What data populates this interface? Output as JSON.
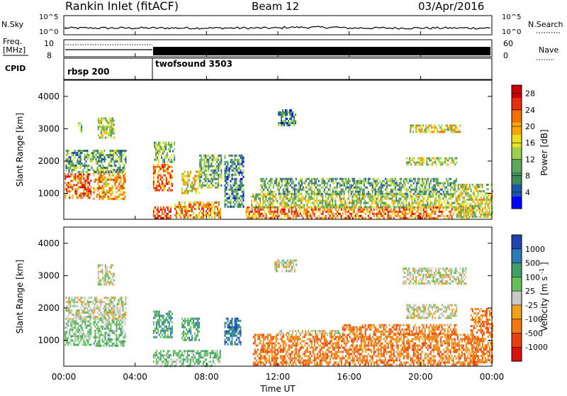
{
  "header": {
    "station": "Rankin Inlet (fitACF)",
    "beam": "Beam 12",
    "date": "03/Apr/2016"
  },
  "top_panels": {
    "nsky_label": "N.Sky",
    "nsky_ticks": [
      "10^5",
      "10^0"
    ],
    "nsearch_label": "N.Search",
    "nsearch_ticks": [
      "10^5",
      "10^0"
    ],
    "freq_label_1": "Freq.",
    "freq_label_2": "[MHz]",
    "freq_ticks": [
      "10",
      "8"
    ],
    "nave_label": "Nave",
    "nave_ticks": [
      "60",
      "0"
    ],
    "cpid_label": "CPID",
    "cpid_segments": [
      {
        "name": "rbsp 200",
        "start_hour": 0,
        "end_hour": 5
      },
      {
        "name": "twofsound 3503",
        "start_hour": 5,
        "end_hour": 24
      }
    ]
  },
  "x_axis": {
    "title": "Time UT",
    "ticks": [
      "00:00",
      "04:00",
      "08:00",
      "12:00",
      "16:00",
      "20:00",
      "00:00"
    ],
    "tick_hours": [
      0,
      4,
      8,
      12,
      16,
      20,
      24
    ]
  },
  "colorbars": {
    "power": {
      "title": "Power [dB]",
      "labels": [
        "28",
        "24",
        "20",
        "16",
        "12",
        "8",
        "4"
      ],
      "label_values": [
        28,
        24,
        20,
        16,
        12,
        8,
        4
      ],
      "range": [
        0,
        30
      ],
      "colors": [
        "#0000ff",
        "#1d58a8",
        "#3f8a56",
        "#5fa65f",
        "#9cd04e",
        "#e8e020",
        "#f7a800",
        "#f07000",
        "#e83010",
        "#cc0000"
      ]
    },
    "velocity": {
      "title_main": "Velocity [m s",
      "title_sup": "-1",
      "title_end": "]",
      "labels": [
        "1000",
        "500",
        "100",
        "25",
        "-25",
        "-100",
        "-500",
        "-1000"
      ],
      "colors": [
        "#2244aa",
        "#2f7ab6",
        "#3f9f66",
        "#66c05a",
        "#c8c8c8",
        "#f2a020",
        "#f07810",
        "#e84010",
        "#dd1010"
      ]
    }
  },
  "chart_data": [
    {
      "type": "heatmap",
      "title": "Power",
      "ylabel": "Slant Range [km]",
      "xlabel": "",
      "ylim": [
        200,
        4500
      ],
      "yticks": [
        1000,
        2000,
        3000,
        4000
      ],
      "x_range_hours": [
        0,
        24
      ],
      "echo_regions": [
        {
          "t0": 0.05,
          "t1": 1.55,
          "r0": 880,
          "r1": 1620,
          "level": 24
        },
        {
          "t0": 1.65,
          "t1": 3.45,
          "r0": 820,
          "r1": 1720,
          "level": 20
        },
        {
          "t0": 0.1,
          "t1": 3.5,
          "r0": 1630,
          "r1": 2350,
          "level": 10
        },
        {
          "t0": 1.9,
          "t1": 2.8,
          "r0": 2750,
          "r1": 3350,
          "level": 13
        },
        {
          "t0": 0.8,
          "t1": 1.0,
          "r0": 2900,
          "r1": 3200,
          "level": 9
        },
        {
          "t0": 5.0,
          "t1": 6.1,
          "r0": 1100,
          "r1": 1920,
          "level": 22
        },
        {
          "t0": 5.05,
          "t1": 6.2,
          "r0": 2000,
          "r1": 2600,
          "level": 11
        },
        {
          "t0": 6.6,
          "t1": 7.6,
          "r0": 1000,
          "r1": 1700,
          "level": 16
        },
        {
          "t0": 7.6,
          "t1": 8.8,
          "r0": 1200,
          "r1": 2200,
          "level": 11
        },
        {
          "t0": 5.0,
          "t1": 6.0,
          "r0": 230,
          "r1": 600,
          "level": 26
        },
        {
          "t0": 6.2,
          "t1": 8.8,
          "r0": 250,
          "r1": 750,
          "level": 20
        },
        {
          "t0": 9.0,
          "t1": 10.1,
          "r0": 600,
          "r1": 2200,
          "level": 8
        },
        {
          "t0": 10.2,
          "t1": 22.8,
          "r0": 230,
          "r1": 600,
          "level": 22
        },
        {
          "t0": 10.5,
          "t1": 22.0,
          "r0": 600,
          "r1": 1000,
          "level": 14
        },
        {
          "t0": 11.0,
          "t1": 22.0,
          "r0": 1000,
          "r1": 1480,
          "level": 10
        },
        {
          "t0": 19.4,
          "t1": 22.2,
          "r0": 2900,
          "r1": 3130,
          "level": 17
        },
        {
          "t0": 19.2,
          "t1": 22.0,
          "r0": 1880,
          "r1": 2120,
          "level": 14
        },
        {
          "t0": 22.0,
          "t1": 24.0,
          "r0": 250,
          "r1": 1300,
          "level": 15
        },
        {
          "t0": 12.0,
          "t1": 13.0,
          "r0": 3100,
          "r1": 3600,
          "level": 8
        }
      ]
    },
    {
      "type": "heatmap",
      "title": "Velocity",
      "ylabel": "Slant Range [km]",
      "xlabel": "Time UT",
      "ylim": [
        200,
        4500
      ],
      "yticks": [
        1000,
        2000,
        3000,
        4000
      ],
      "x_range_hours": [
        0,
        24
      ],
      "echo_regions": [
        {
          "t0": 0.05,
          "t1": 1.55,
          "r0": 880,
          "r1": 1620,
          "level": 3
        },
        {
          "t0": 1.65,
          "t1": 3.45,
          "r0": 820,
          "r1": 1720,
          "level": 3
        },
        {
          "t0": 0.1,
          "t1": 3.5,
          "r0": 1630,
          "r1": 2350,
          "level": 4
        },
        {
          "t0": 1.9,
          "t1": 2.8,
          "r0": 2750,
          "r1": 3350,
          "level": 4
        },
        {
          "t0": 5.0,
          "t1": 6.1,
          "r0": 1100,
          "r1": 1920,
          "level": 2
        },
        {
          "t0": 6.6,
          "t1": 7.6,
          "r0": 1000,
          "r1": 1700,
          "level": 2
        },
        {
          "t0": 9.0,
          "t1": 9.9,
          "r0": 900,
          "r1": 1700,
          "level": 1
        },
        {
          "t0": 5.0,
          "t1": 8.8,
          "r0": 230,
          "r1": 700,
          "level": 3
        },
        {
          "t0": 10.6,
          "t1": 23.2,
          "r0": 250,
          "r1": 1200,
          "level": 6
        },
        {
          "t0": 15.6,
          "t1": 22.0,
          "r0": 1200,
          "r1": 1500,
          "level": 6
        },
        {
          "t0": 12.0,
          "t1": 15.5,
          "r0": 1200,
          "r1": 1320,
          "level": 4
        },
        {
          "t0": 19.0,
          "t1": 22.5,
          "r0": 2750,
          "r1": 3250,
          "level": 4
        },
        {
          "t0": 19.2,
          "t1": 22.0,
          "r0": 1700,
          "r1": 2120,
          "level": 4
        },
        {
          "t0": 11.8,
          "t1": 13.0,
          "r0": 3150,
          "r1": 3500,
          "level": 4
        },
        {
          "t0": 22.8,
          "t1": 24.0,
          "r0": 300,
          "r1": 2000,
          "level": 6
        }
      ]
    }
  ]
}
